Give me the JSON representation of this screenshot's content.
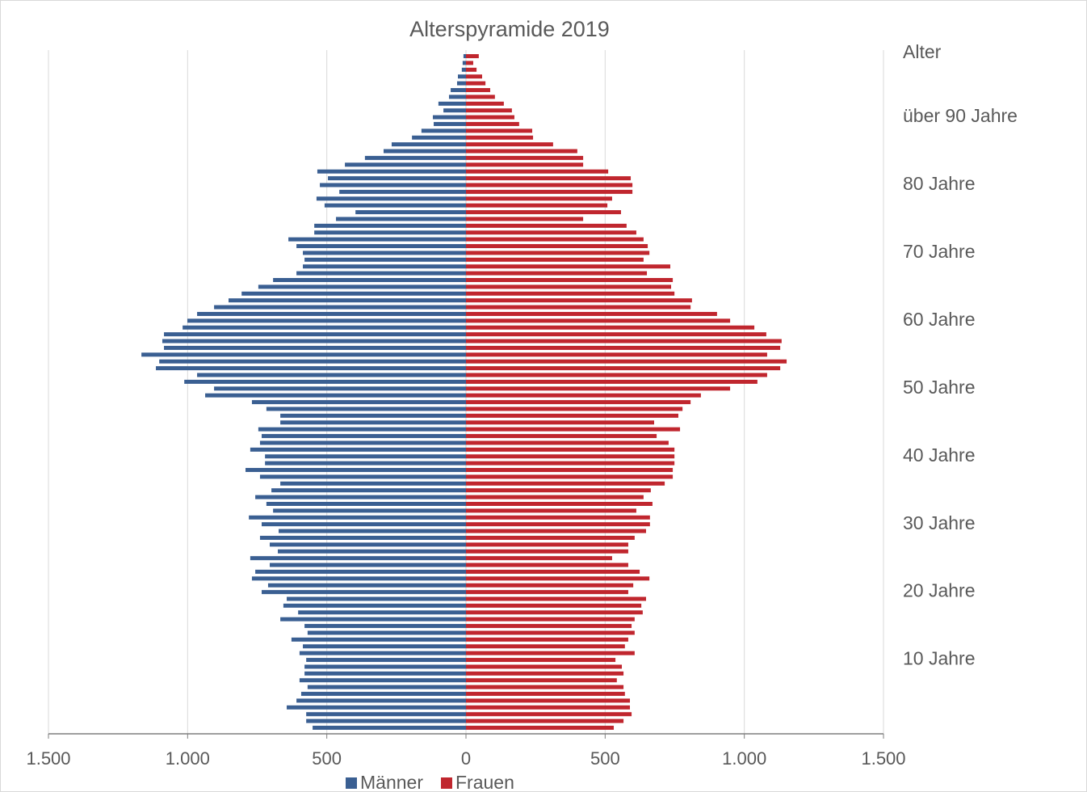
{
  "chart_data": {
    "type": "pyramid",
    "title": "Alterspyramide 2019",
    "ylabel": "Alter",
    "categories": [
      null,
      null,
      null,
      null,
      null,
      null,
      null,
      null,
      null,
      null,
      "10 Jahre",
      null,
      null,
      null,
      null,
      null,
      null,
      null,
      null,
      null,
      "20 Jahre",
      null,
      null,
      null,
      null,
      null,
      null,
      null,
      null,
      null,
      "30 Jahre",
      null,
      null,
      null,
      null,
      null,
      null,
      null,
      null,
      null,
      "40 Jahre",
      null,
      null,
      null,
      null,
      null,
      null,
      null,
      null,
      null,
      "50 Jahre",
      null,
      null,
      null,
      null,
      null,
      null,
      null,
      null,
      null,
      "60 Jahre",
      null,
      null,
      null,
      null,
      null,
      null,
      null,
      null,
      null,
      "70 Jahre",
      null,
      null,
      null,
      null,
      null,
      null,
      null,
      null,
      null,
      "80 Jahre",
      null,
      null,
      null,
      null,
      null,
      null,
      null,
      null,
      null,
      "über 90 Jahre",
      null,
      null,
      null,
      null,
      null,
      null,
      null,
      null,
      null
    ],
    "series": [
      {
        "name": "Männer",
        "color": "#3a5f92",
        "side": "left",
        "values": [
          551,
          574,
          574,
          644,
          609,
          592,
          569,
          598,
          580,
          580,
          574,
          598,
          586,
          627,
          569,
          580,
          667,
          603,
          656,
          644,
          734,
          711,
          769,
          757,
          705,
          775,
          676,
          705,
          740,
          673,
          734,
          780,
          693,
          717,
          757,
          699,
          667,
          740,
          792,
          722,
          722,
          775,
          740,
          734,
          746,
          667,
          667,
          717,
          769,
          937,
          905,
          1012,
          966,
          1114,
          1102,
          1166,
          1085,
          1091,
          1085,
          1018,
          1001,
          966,
          905,
          853,
          806,
          746,
          693,
          609,
          586,
          580,
          586,
          609,
          638,
          545,
          545,
          467,
          397,
          508,
          537,
          455,
          525,
          496,
          534,
          435,
          363,
          296,
          267,
          194,
          160,
          116,
          119,
          81,
          99,
          61,
          55,
          32,
          29,
          15,
          12,
          9
        ]
      },
      {
        "name": "Frauen",
        "color": "#c0262e",
        "side": "right",
        "values": [
          531,
          566,
          595,
          589,
          589,
          571,
          566,
          542,
          566,
          560,
          537,
          606,
          571,
          583,
          606,
          595,
          606,
          635,
          630,
          647,
          583,
          601,
          659,
          624,
          583,
          525,
          583,
          583,
          606,
          647,
          661,
          661,
          612,
          670,
          638,
          664,
          714,
          743,
          743,
          749,
          749,
          749,
          728,
          685,
          769,
          676,
          763,
          778,
          807,
          844,
          949,
          1047,
          1082,
          1129,
          1152,
          1082,
          1129,
          1134,
          1079,
          1036,
          949,
          902,
          807,
          812,
          749,
          737,
          743,
          650,
          734,
          638,
          659,
          653,
          638,
          612,
          577,
          421,
          557,
          508,
          525,
          598,
          598,
          592,
          511,
          421,
          421,
          400,
          313,
          241,
          238,
          191,
          174,
          165,
          136,
          104,
          87,
          70,
          58,
          38,
          26,
          46
        ]
      }
    ],
    "xlim": [
      -1500,
      1500
    ],
    "xticks": [
      {
        "value": -1500,
        "label": "1.500"
      },
      {
        "value": -1000,
        "label": "1.000"
      },
      {
        "value": -500,
        "label": "500"
      },
      0,
      500,
      {
        "value": 1000,
        "label": "1.000"
      },
      {
        "value": 1500,
        "label": "1.500"
      }
    ],
    "grid": true,
    "legend": "bottom"
  }
}
